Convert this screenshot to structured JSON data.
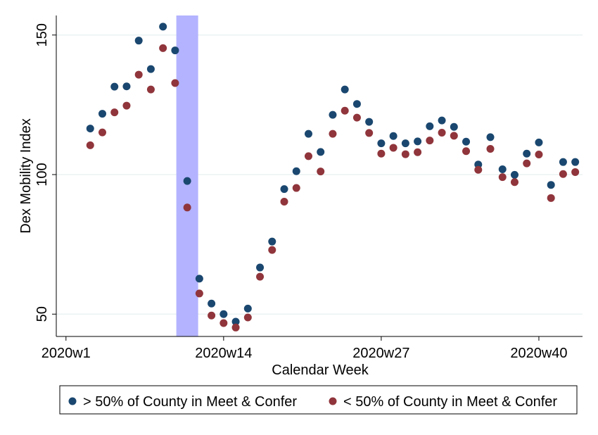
{
  "chart_data": {
    "type": "scatter",
    "xlabel": "Calendar Week",
    "ylabel": "Dex Mobility Index",
    "x_ticks": [
      {
        "label": "2020w1",
        "x": 1
      },
      {
        "label": "2020w14",
        "x": 14
      },
      {
        "label": "2020w27",
        "x": 27
      },
      {
        "label": "2020w40",
        "x": 40
      }
    ],
    "y_ticks": [
      50,
      100,
      150
    ],
    "xlim": [
      0.2,
      43.6
    ],
    "ylim": [
      42,
      157
    ],
    "grid": true,
    "legend_position": "bottom",
    "shaded_band": {
      "x_start": 10.1,
      "x_end": 11.9,
      "color": "#b3b3ff"
    },
    "series": [
      {
        "name": "> 50% of County in Meet & Confer",
        "color": "#1a476f",
        "points": [
          [
            3,
            116.5
          ],
          [
            4,
            121.8
          ],
          [
            5,
            131.5
          ],
          [
            6,
            131.6
          ],
          [
            7,
            148
          ],
          [
            8,
            137.8
          ],
          [
            9,
            153
          ],
          [
            10,
            144.5
          ],
          [
            11,
            97.7
          ],
          [
            12,
            62.7
          ],
          [
            13,
            53.8
          ],
          [
            14,
            50
          ],
          [
            15,
            47.3
          ],
          [
            16,
            52
          ],
          [
            17,
            66.7
          ],
          [
            18,
            76
          ],
          [
            19,
            94.8
          ],
          [
            20,
            101.2
          ],
          [
            21,
            114.6
          ],
          [
            22,
            108.1
          ],
          [
            23,
            121.4
          ],
          [
            24,
            130.5
          ],
          [
            25,
            125.3
          ],
          [
            26,
            118.9
          ],
          [
            27,
            111.2
          ],
          [
            28,
            113.8
          ],
          [
            29,
            111.2
          ],
          [
            30,
            111.9
          ],
          [
            31,
            117.3
          ],
          [
            32,
            119.4
          ],
          [
            33,
            117.1
          ],
          [
            34,
            111.8
          ],
          [
            35,
            103.6
          ],
          [
            36,
            113.4
          ],
          [
            37,
            101.9
          ],
          [
            38,
            99.9
          ],
          [
            39,
            107.5
          ],
          [
            40,
            111.5
          ],
          [
            41,
            96.3
          ],
          [
            42,
            104.5
          ],
          [
            43,
            104.5
          ]
        ]
      },
      {
        "name": "< 50% of County in Meet & Confer",
        "color": "#90353b",
        "points": [
          [
            3,
            110.5
          ],
          [
            4,
            115.1
          ],
          [
            5,
            122.3
          ],
          [
            6,
            124.7
          ],
          [
            7,
            135.8
          ],
          [
            8,
            130.5
          ],
          [
            9,
            145.3
          ],
          [
            10,
            132.8
          ],
          [
            11,
            88.2
          ],
          [
            12,
            57.4
          ],
          [
            13,
            49.5
          ],
          [
            14,
            46.8
          ],
          [
            15,
            45.2
          ],
          [
            16,
            48.8
          ],
          [
            17,
            63.4
          ],
          [
            18,
            73
          ],
          [
            19,
            90.3
          ],
          [
            20,
            95.2
          ],
          [
            21,
            106.6
          ],
          [
            22,
            101.1
          ],
          [
            23,
            114.6
          ],
          [
            24,
            122.9
          ],
          [
            25,
            120.4
          ],
          [
            26,
            114.9
          ],
          [
            27,
            107.5
          ],
          [
            28,
            109.6
          ],
          [
            29,
            107.3
          ],
          [
            30,
            108
          ],
          [
            31,
            112.2
          ],
          [
            32,
            115
          ],
          [
            33,
            113.9
          ],
          [
            34,
            108.4
          ],
          [
            35,
            101.7
          ],
          [
            36,
            109.2
          ],
          [
            37,
            99.1
          ],
          [
            38,
            97.3
          ],
          [
            39,
            104
          ],
          [
            40,
            107.2
          ],
          [
            41,
            91.6
          ],
          [
            42,
            100.2
          ],
          [
            43,
            100.9
          ]
        ]
      }
    ]
  }
}
